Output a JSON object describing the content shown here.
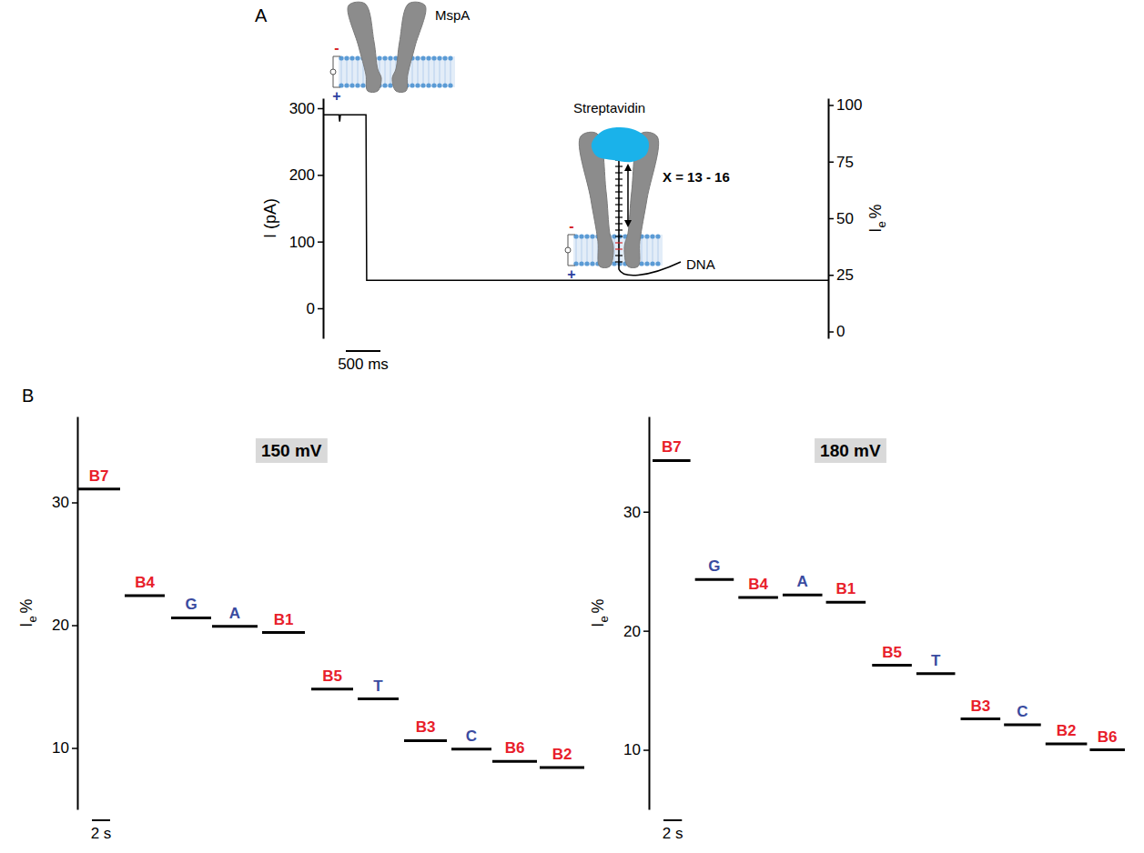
{
  "chart_data": [
    {
      "type": "line",
      "panel": "A",
      "ylabel": "I (pA)",
      "y2label": {
        "text": "I",
        "subscript": "e",
        "suffix": "%"
      },
      "x": [
        0,
        0.23,
        0.24,
        0.25,
        0.62,
        0.63,
        7.3
      ],
      "values": [
        290,
        290,
        280,
        290,
        290,
        42,
        42
      ],
      "color": "#000000",
      "xlim": [
        0,
        7.3
      ],
      "ylim": [
        -45,
        315
      ],
      "yticks": [
        0,
        100,
        200,
        300
      ],
      "y2lim": [
        -3,
        103
      ],
      "y2ticks": [
        0,
        25,
        50,
        75,
        100
      ],
      "scale_bar": {
        "value": 0.5,
        "label": "500 ms"
      },
      "annotations": [
        "MspA",
        "Streptavidin",
        "X = 13 - 16",
        "DNA"
      ],
      "polarity": [
        "-",
        "+"
      ]
    },
    {
      "type": "segment",
      "panel": "B",
      "title": "150 mV",
      "ylabel": {
        "text": "I",
        "subscript": "e",
        "suffix": "%"
      },
      "categories": [
        "B7",
        "B4",
        "G",
        "A",
        "B1",
        "B5",
        "T",
        "B3",
        "C",
        "B6",
        "B2"
      ],
      "values": [
        31.1,
        22.4,
        20.6,
        19.9,
        19.4,
        14.8,
        14.0,
        10.6,
        9.9,
        8.9,
        8.4
      ],
      "x_start": [
        0,
        5.2,
        10.3,
        14.8,
        20.3,
        25.7,
        30.8,
        35.9,
        41.1,
        45.6,
        50.8
      ],
      "x_end": [
        4.7,
        9.6,
        14.7,
        19.8,
        25.0,
        30.3,
        35.3,
        40.6,
        45.5,
        50.5,
        55.7
      ],
      "colors": [
        "#e8202a",
        "#e8202a",
        "#3a4ba0",
        "#3a4ba0",
        "#e8202a",
        "#e8202a",
        "#3a4ba0",
        "#e8202a",
        "#3a4ba0",
        "#e8202a",
        "#e8202a"
      ],
      "xlim": [
        0,
        56
      ],
      "ylim": [
        5,
        37
      ],
      "yticks": [
        10,
        20,
        30
      ],
      "scale_bar": {
        "value": 2,
        "label": "2 s"
      }
    },
    {
      "type": "segment",
      "title": "180 mV",
      "ylabel": {
        "text": "I",
        "subscript": "e",
        "suffix": "%"
      },
      "categories": [
        "B7",
        "G",
        "B4",
        "A",
        "B1",
        "B5",
        "T",
        "B3",
        "C",
        "B2",
        "B6"
      ],
      "values": [
        34.3,
        24.3,
        22.8,
        23.0,
        22.4,
        17.1,
        16.4,
        12.6,
        12.1,
        10.5,
        10.0
      ],
      "x_start": [
        0.4,
        5.0,
        9.7,
        14.5,
        19.2,
        24.2,
        29.0,
        33.8,
        38.5,
        43.0,
        47.8
      ],
      "x_end": [
        4.5,
        9.2,
        14.0,
        18.8,
        23.5,
        28.5,
        33.2,
        38.1,
        42.5,
        47.5,
        51.6
      ],
      "colors": [
        "#e8202a",
        "#3a4ba0",
        "#e8202a",
        "#3a4ba0",
        "#e8202a",
        "#e8202a",
        "#3a4ba0",
        "#e8202a",
        "#3a4ba0",
        "#e8202a",
        "#e8202a"
      ],
      "xlim": [
        0,
        52
      ],
      "ylim": [
        5,
        38
      ],
      "yticks": [
        10,
        20,
        30
      ],
      "scale_bar": {
        "value": 2,
        "label": "2 s"
      }
    }
  ]
}
